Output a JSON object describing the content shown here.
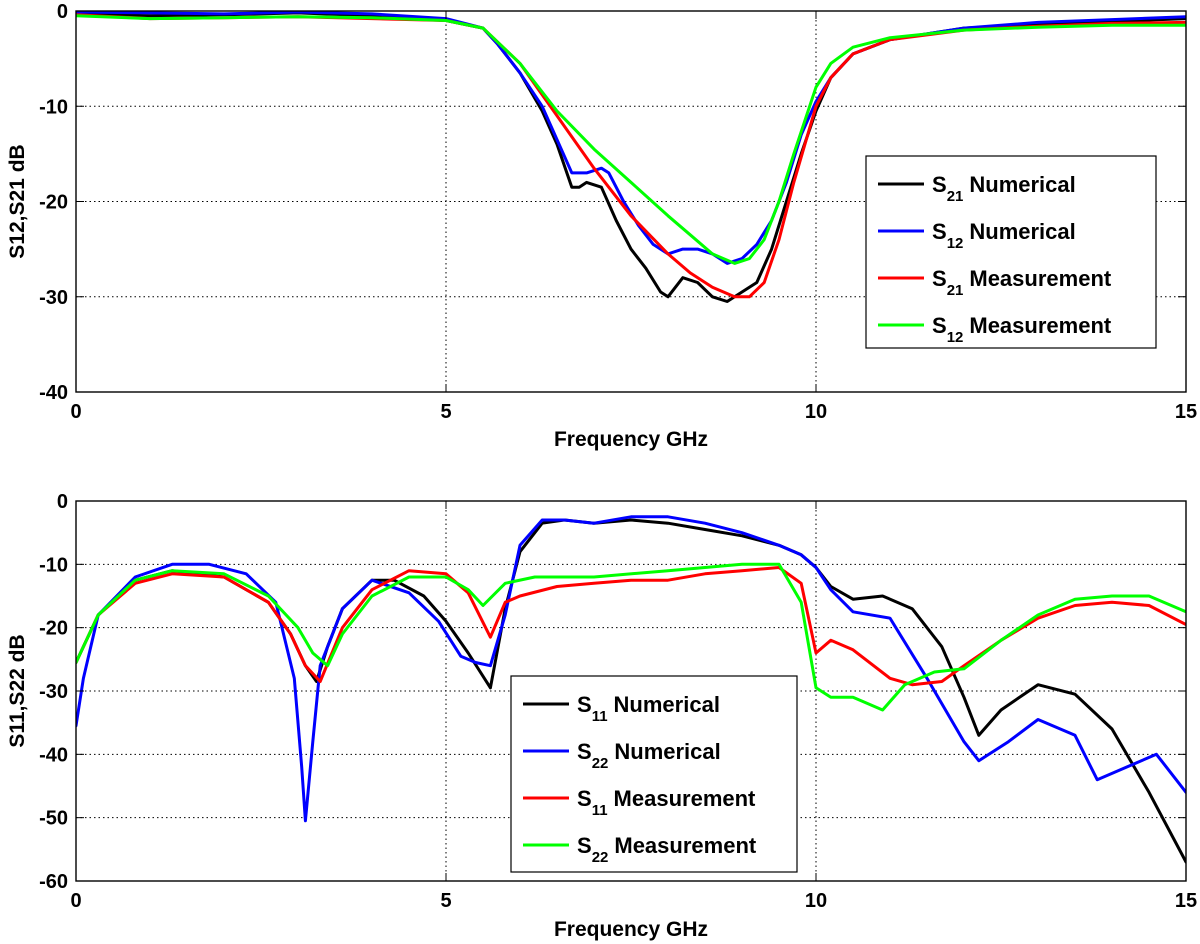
{
  "chart_data": [
    {
      "type": "line",
      "title": "",
      "xlabel": "Frequency GHz",
      "ylabel": "S12,S21 dB",
      "xlim": [
        0,
        15
      ],
      "ylim": [
        -40,
        0
      ],
      "xticks": [
        0,
        5,
        10,
        15
      ],
      "yticks": [
        0,
        -10,
        -20,
        -30,
        -40
      ],
      "grid": true,
      "legend_position": "right",
      "series": [
        {
          "name": "S21 Numerical",
          "name_main": "S",
          "name_sub": "21",
          "name_rest": "Numerical",
          "color": "#000000",
          "x": [
            0,
            1,
            2,
            3,
            4,
            5,
            5.5,
            5.7,
            6,
            6.3,
            6.5,
            6.7,
            6.8,
            6.9,
            7.1,
            7.3,
            7.5,
            7.7,
            7.9,
            8.0,
            8.2,
            8.4,
            8.6,
            8.8,
            9.0,
            9.2,
            9.4,
            9.6,
            9.8,
            10.0,
            10.2,
            10.5,
            11,
            12,
            13,
            14,
            15
          ],
          "y": [
            -0.3,
            -0.5,
            -0.4,
            -0.2,
            -0.5,
            -1.0,
            -1.8,
            -3.5,
            -6.5,
            -10.5,
            -14,
            -18.5,
            -18.5,
            -18,
            -18.5,
            -22,
            -25,
            -27,
            -29.5,
            -30,
            -28,
            -28.5,
            -30,
            -30.5,
            -29.5,
            -28.5,
            -25,
            -20,
            -15,
            -10.5,
            -7,
            -4.5,
            -3,
            -1.8,
            -1.4,
            -1.1,
            -0.8
          ]
        },
        {
          "name": "S12 Numerical",
          "name_main": "S",
          "name_sub": "12",
          "name_rest": "Numerical",
          "color": "#0000ff",
          "x": [
            0,
            1,
            2,
            3,
            4,
            5,
            5.5,
            5.7,
            6,
            6.3,
            6.5,
            6.7,
            6.9,
            7.1,
            7.2,
            7.4,
            7.6,
            7.8,
            8.0,
            8.2,
            8.4,
            8.6,
            8.8,
            9.0,
            9.2,
            9.4,
            9.6,
            9.8,
            10.0,
            10.2,
            10.5,
            11,
            12,
            13,
            14,
            15
          ],
          "y": [
            -0.1,
            -0.2,
            -0.3,
            -0.1,
            -0.3,
            -0.8,
            -1.8,
            -3.5,
            -6.5,
            -10,
            -13.5,
            -17,
            -17,
            -16.5,
            -17,
            -20,
            -22.5,
            -24.5,
            -25.5,
            -25,
            -25,
            -25.5,
            -26.5,
            -26,
            -24.5,
            -22,
            -18,
            -13,
            -9.5,
            -7,
            -4.5,
            -3,
            -1.8,
            -1.2,
            -0.9,
            -0.6
          ]
        },
        {
          "name": "S21 Measurement",
          "name_main": "S",
          "name_sub": "21",
          "name_rest": "Measurement",
          "color": "#ff0000",
          "x": [
            0,
            1,
            2,
            3,
            4,
            5,
            5.5,
            6,
            6.5,
            7,
            7.5,
            8,
            8.3,
            8.6,
            8.9,
            9.1,
            9.3,
            9.5,
            9.7,
            10.0,
            10.2,
            10.5,
            11,
            12,
            13,
            14,
            15
          ],
          "y": [
            -0.4,
            -0.8,
            -0.7,
            -0.6,
            -0.8,
            -1.0,
            -1.8,
            -5.5,
            -11,
            -16.5,
            -21.5,
            -25.5,
            -27.5,
            -29,
            -30,
            -30,
            -28.5,
            -24,
            -18,
            -10,
            -7,
            -4.5,
            -3,
            -2,
            -1.6,
            -1.3,
            -1.2
          ]
        },
        {
          "name": "S12 Measurement",
          "name_main": "S",
          "name_sub": "12",
          "name_rest": "Measurement",
          "color": "#00ff00",
          "x": [
            0,
            1,
            2,
            3,
            4,
            5,
            5.5,
            6,
            6.5,
            7,
            7.5,
            8,
            8.3,
            8.6,
            8.9,
            9.1,
            9.3,
            9.5,
            9.7,
            10.0,
            10.2,
            10.5,
            11,
            12,
            13,
            14,
            15
          ],
          "y": [
            -0.5,
            -0.8,
            -0.7,
            -0.6,
            -0.7,
            -1.0,
            -1.8,
            -5.5,
            -10.5,
            -14.5,
            -18,
            -21.5,
            -23.5,
            -25.5,
            -26.5,
            -26,
            -24,
            -20,
            -15,
            -8,
            -5.5,
            -3.8,
            -2.8,
            -2,
            -1.7,
            -1.5,
            -1.5
          ]
        }
      ]
    },
    {
      "type": "line",
      "title": "",
      "xlabel": "Frequency GHz",
      "ylabel": "S11,S22 dB",
      "xlim": [
        0,
        15
      ],
      "ylim": [
        -60,
        0
      ],
      "xticks": [
        0,
        5,
        10,
        15
      ],
      "yticks": [
        0,
        -10,
        -20,
        -30,
        -40,
        -50,
        -60
      ],
      "grid": true,
      "legend_position": "lower-center",
      "series": [
        {
          "name": "S11 Numerical",
          "name_main": "S",
          "name_sub": "11",
          "name_rest": "Numerical",
          "color": "#000000",
          "x": [
            0,
            0.3,
            0.8,
            1.3,
            2,
            2.6,
            2.9,
            3.1,
            3.25,
            3.4,
            3.6,
            4,
            4.3,
            4.7,
            5,
            5.3,
            5.6,
            5.8,
            6,
            6.3,
            6.6,
            7,
            7.5,
            8,
            8.5,
            9,
            9.5,
            9.8,
            10,
            10.2,
            10.5,
            10.9,
            11.3,
            11.7,
            12.0,
            12.2,
            12.5,
            13,
            13.5,
            14,
            14.5,
            15
          ],
          "y": [
            -25.5,
            -18,
            -12.5,
            -11,
            -12,
            -16,
            -21,
            -26,
            -28.5,
            -23,
            -17,
            -12.5,
            -12.5,
            -15,
            -19,
            -24,
            -29.5,
            -17,
            -8,
            -3.5,
            -3,
            -3.5,
            -3,
            -3.5,
            -4.5,
            -5.5,
            -7,
            -8.5,
            -10.5,
            -13.5,
            -15.5,
            -15,
            -17,
            -23,
            -31,
            -37,
            -33,
            -29,
            -30.5,
            -36,
            -46,
            -57
          ]
        },
        {
          "name": "S22 Numerical",
          "name_main": "S",
          "name_sub": "22",
          "name_rest": "Numerical",
          "color": "#0000ff",
          "x": [
            0,
            0.1,
            0.3,
            0.8,
            1.3,
            1.8,
            2.3,
            2.7,
            2.95,
            3.05,
            3.1,
            3.2,
            3.3,
            3.6,
            4,
            4.5,
            4.9,
            5.2,
            5.4,
            5.6,
            5.8,
            6.0,
            6.3,
            6.6,
            7,
            7.5,
            8,
            8.5,
            9,
            9.5,
            9.8,
            10,
            10.2,
            10.5,
            11,
            11.5,
            12,
            12.2,
            12.6,
            13,
            13.5,
            13.8,
            14.2,
            14.6,
            15
          ],
          "y": [
            -35.5,
            -28,
            -18,
            -12,
            -10,
            -10,
            -11.5,
            -16,
            -28,
            -42,
            -50.5,
            -38,
            -26,
            -17,
            -12.5,
            -14.5,
            -19,
            -24.5,
            -25.5,
            -26,
            -18,
            -7,
            -3,
            -3,
            -3.5,
            -2.5,
            -2.5,
            -3.5,
            -5,
            -7,
            -8.5,
            -10.5,
            -14,
            -17.5,
            -18.5,
            -28,
            -38,
            -41,
            -38,
            -34.5,
            -37,
            -44,
            -42,
            -40,
            -46
          ]
        },
        {
          "name": "S11 Measurement",
          "name_main": "S",
          "name_sub": "11",
          "name_rest": "Measurement",
          "color": "#ff0000",
          "x": [
            0,
            0.3,
            0.8,
            1.3,
            2,
            2.6,
            2.9,
            3.1,
            3.3,
            3.6,
            4,
            4.5,
            5,
            5.3,
            5.6,
            5.8,
            6,
            6.5,
            7,
            7.5,
            8,
            8.5,
            9,
            9.5,
            9.8,
            10.0,
            10.2,
            10.5,
            11,
            11.3,
            11.7,
            12.0,
            12.5,
            13,
            13.5,
            14,
            14.5,
            15
          ],
          "y": [
            -25.5,
            -18,
            -13,
            -11.5,
            -12,
            -16,
            -21,
            -26,
            -28.5,
            -20,
            -14,
            -11,
            -11.5,
            -14.5,
            -21.5,
            -16,
            -15,
            -13.5,
            -13,
            -12.5,
            -12.5,
            -11.5,
            -11,
            -10.5,
            -13,
            -24,
            -22,
            -23.5,
            -28,
            -29,
            -28.5,
            -26,
            -22,
            -18.5,
            -16.5,
            -16,
            -16.5,
            -19.5
          ]
        },
        {
          "name": "S22 Measurement",
          "name_main": "S",
          "name_sub": "22",
          "name_rest": "Measurement",
          "color": "#00ff00",
          "x": [
            0,
            0.3,
            0.8,
            1.3,
            2,
            2.6,
            3.0,
            3.2,
            3.4,
            3.6,
            4,
            4.5,
            5,
            5.3,
            5.5,
            5.8,
            6.2,
            7,
            8,
            9,
            9.5,
            9.8,
            10.0,
            10.2,
            10.5,
            10.9,
            11.2,
            11.6,
            12.0,
            12.5,
            13,
            13.5,
            14,
            14.5,
            15
          ],
          "y": [
            -25.5,
            -18,
            -12.5,
            -11,
            -11.5,
            -15,
            -20,
            -24,
            -26,
            -21,
            -15,
            -12,
            -12,
            -14,
            -16.5,
            -13,
            -12,
            -12,
            -11,
            -10,
            -10,
            -16,
            -29.5,
            -31,
            -31,
            -33,
            -29,
            -27,
            -26.5,
            -22,
            -18,
            -15.5,
            -15,
            -15,
            -17.5
          ]
        }
      ]
    }
  ]
}
